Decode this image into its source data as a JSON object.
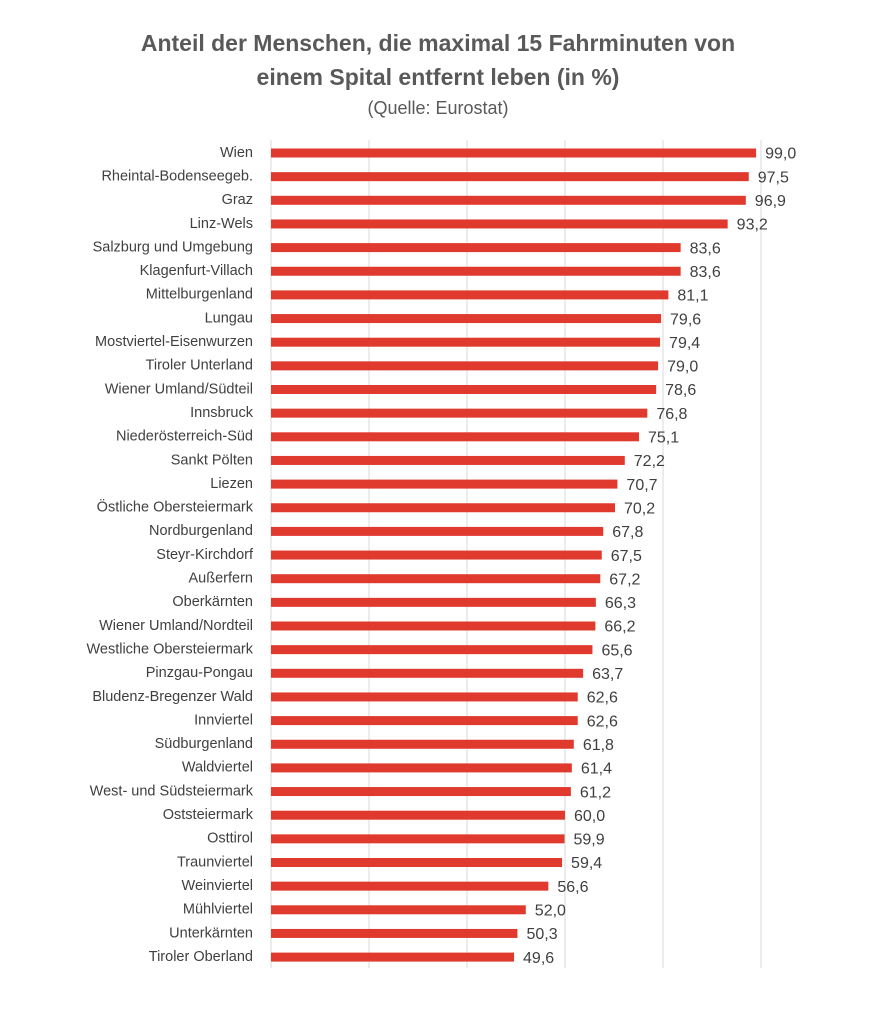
{
  "chart_data": {
    "type": "bar",
    "orientation": "horizontal",
    "title_lines": [
      "Anteil der Menschen, die maximal 15 Fahrminuten von",
      "einem Spital entfernt leben (in %)"
    ],
    "subtitle": "(Quelle: Eurostat)",
    "xlabel": "",
    "ylabel": "",
    "xlim": [
      0,
      100
    ],
    "grid": true,
    "legend": "none",
    "bar_color": "#E03A2F",
    "categories": [
      "Wien",
      "Rheintal-Bodenseegeb.",
      "Graz",
      "Linz-Wels",
      "Salzburg und Umgebung",
      "Klagenfurt-Villach",
      "Mittelburgenland",
      "Lungau",
      "Mostviertel-Eisenwurzen",
      "Tiroler Unterland",
      "Wiener Umland/Südteil",
      "Innsbruck",
      "Niederösterreich-Süd",
      "Sankt Pölten",
      "Liezen",
      "Östliche Obersteiermark",
      "Nordburgenland",
      "Steyr-Kirchdorf",
      "Außerfern",
      "Oberkärnten",
      "Wiener Umland/Nordteil",
      "Westliche Obersteiermark",
      "Pinzgau-Pongau",
      "Bludenz-Bregenzer Wald",
      "Innviertel",
      "Südburgenland",
      "Waldviertel",
      "West- und Südsteiermark",
      "Oststeiermark",
      "Osttirol",
      "Traunviertel",
      "Weinviertel",
      "Mühlviertel",
      "Unterkärnten",
      "Tiroler Oberland"
    ],
    "values": [
      99.0,
      97.5,
      96.9,
      93.2,
      83.6,
      83.6,
      81.1,
      79.6,
      79.4,
      79.0,
      78.6,
      76.8,
      75.1,
      72.2,
      70.7,
      70.2,
      67.8,
      67.5,
      67.2,
      66.3,
      66.2,
      65.6,
      63.7,
      62.6,
      62.6,
      61.8,
      61.4,
      61.2,
      60.0,
      59.9,
      59.4,
      56.6,
      52.0,
      50.3,
      49.6
    ],
    "value_labels": [
      "99,0",
      "97,5",
      "96,9",
      "93,2",
      "83,6",
      "83,6",
      "81,1",
      "79,6",
      "79,4",
      "79,0",
      "78,6",
      "76,8",
      "75,1",
      "72,2",
      "70,7",
      "70,2",
      "67,8",
      "67,5",
      "67,2",
      "66,3",
      "66,2",
      "65,6",
      "63,7",
      "62,6",
      "62,6",
      "61,8",
      "61,4",
      "61,2",
      "60,0",
      "59,9",
      "59,4",
      "56,6",
      "52,0",
      "50,3",
      "49,6"
    ]
  }
}
